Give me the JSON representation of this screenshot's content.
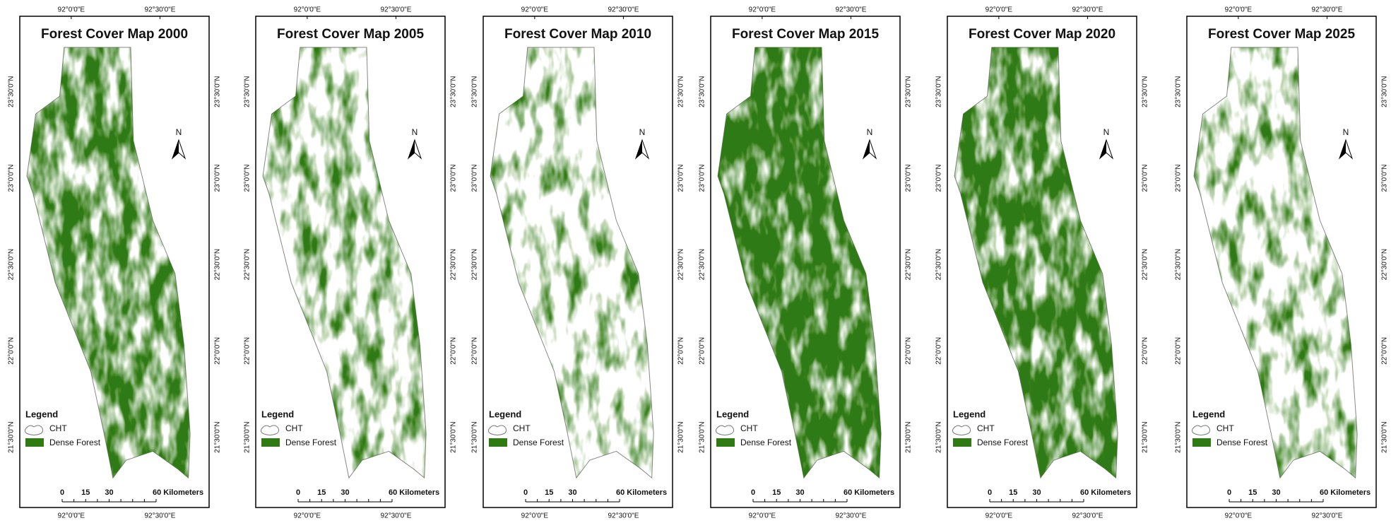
{
  "figure": {
    "panels": [
      {
        "title": "Forest Cover Map 2000"
      },
      {
        "title": "Forest Cover Map 2005"
      },
      {
        "title": "Forest Cover Map 2010"
      },
      {
        "title": "Forest Cover Map 2015"
      },
      {
        "title": "Forest Cover Map 2020"
      },
      {
        "title": "Forest Cover Map 2025"
      }
    ],
    "lon_ticks": [
      "92°0'0\"E",
      "92°30'0\"E"
    ],
    "lat_ticks": [
      "23°30'0\"N",
      "23°0'0\"N",
      "22°30'0\"N",
      "22°0'0\"N",
      "21°30'0\"N"
    ],
    "north": "N",
    "legend": {
      "title": "Legend",
      "items": [
        "CHT",
        "Dense Forest"
      ]
    },
    "scale_bar": {
      "ticks": [
        "0",
        "15",
        "30"
      ],
      "end": "60 Kilometers"
    }
  }
}
